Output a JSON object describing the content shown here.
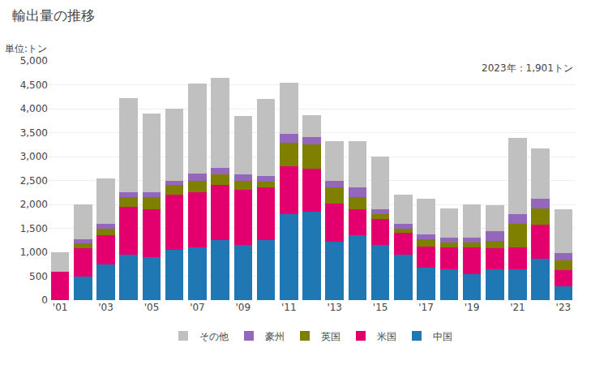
{
  "chart_data": {
    "type": "bar",
    "title": "輸出量の推移",
    "y_label": "単位:トン",
    "annotation": "2023年：1,901トン",
    "categories": [
      "'01",
      null,
      "'03",
      null,
      "'05",
      null,
      "'07",
      null,
      "'09",
      null,
      "'11",
      null,
      "'13",
      null,
      "'15",
      null,
      "'17",
      null,
      "'19",
      null,
      "'21",
      null,
      "'23"
    ],
    "series": [
      {
        "name": "中国",
        "color": "#1f77b4",
        "values": [
          0,
          490,
          750,
          950,
          900,
          1050,
          1100,
          1250,
          1150,
          1250,
          1800,
          1850,
          1220,
          1350,
          1150,
          950,
          670,
          650,
          550,
          640,
          650,
          870,
          280
        ]
      },
      {
        "name": "米国",
        "color": "#e3006e",
        "values": [
          600,
          600,
          600,
          1000,
          1000,
          1150,
          1150,
          1150,
          1150,
          1100,
          1000,
          900,
          800,
          550,
          550,
          450,
          450,
          450,
          550,
          450,
          450,
          700,
          350
        ]
      },
      {
        "name": "英国",
        "color": "#7f7f00",
        "values": [
          0,
          100,
          150,
          200,
          250,
          200,
          250,
          230,
          200,
          130,
          480,
          500,
          330,
          250,
          100,
          100,
          150,
          100,
          100,
          150,
          500,
          350,
          200
        ]
      },
      {
        "name": "豪州",
        "color": "#9467bd",
        "values": [
          0,
          80,
          100,
          100,
          100,
          100,
          150,
          130,
          120,
          110,
          200,
          150,
          150,
          200,
          100,
          100,
          100,
          100,
          100,
          200,
          200,
          200,
          150
        ]
      },
      {
        "name": "その他",
        "color": "#c0c0c0",
        "values": [
          400,
          730,
          950,
          1970,
          1640,
          1500,
          1870,
          1890,
          1220,
          1620,
          1070,
          470,
          830,
          980,
          1100,
          600,
          750,
          620,
          700,
          550,
          1590,
          1050,
          921
        ]
      }
    ],
    "stacked": true,
    "ylim": [
      0,
      5000
    ],
    "yticks": [
      0,
      500,
      {
        "value": 1000,
        "label": "1,000"
      },
      {
        "value": 1500,
        "label": "1,500"
      },
      {
        "value": 2000,
        "label": "2,000"
      },
      {
        "value": 2500,
        "label": "2,500"
      },
      {
        "value": 3000,
        "label": "3,000"
      },
      {
        "value": 3500,
        "label": "3,500"
      },
      {
        "value": 4000,
        "label": "4,000"
      },
      {
        "value": 4500,
        "label": "4,500"
      },
      {
        "value": 5000,
        "label": "5,000"
      }
    ],
    "grid": true,
    "legend": "bottom"
  }
}
